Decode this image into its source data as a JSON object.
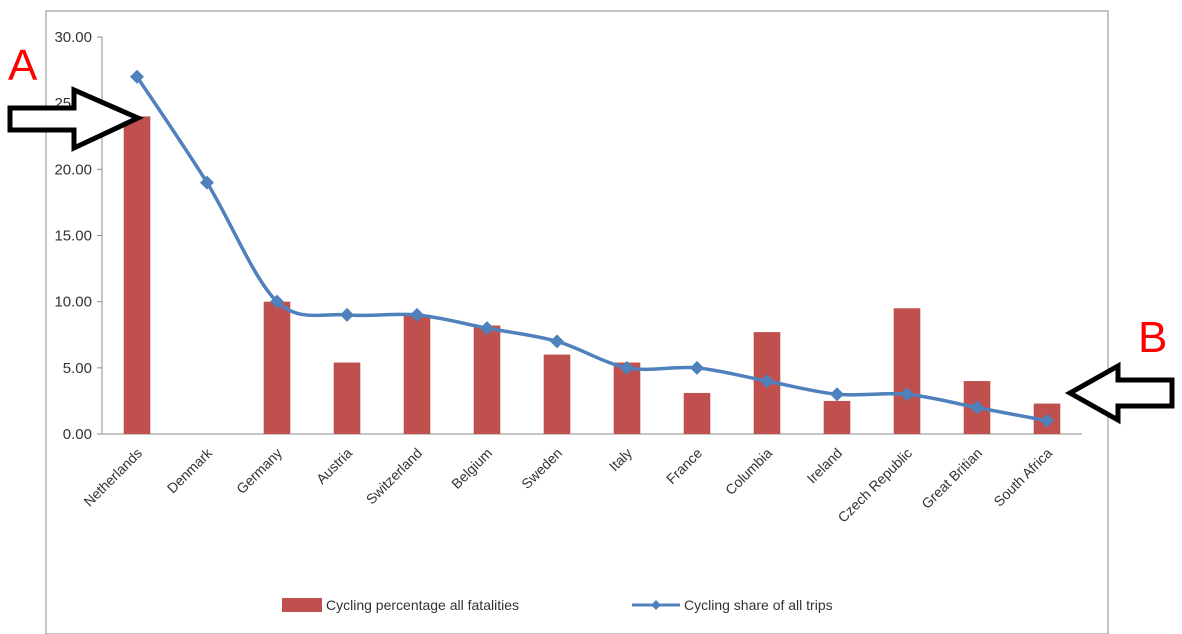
{
  "chart_data": {
    "type": "bar",
    "title": "",
    "xlabel": "",
    "ylabel": "",
    "ylim": [
      0,
      30
    ],
    "yticks": [
      "0.00",
      "5.00",
      "10.00",
      "15.00",
      "20.00",
      "25.00",
      "30.00"
    ],
    "grid": false,
    "legend_position": "bottom",
    "categories": [
      "Netherlands",
      "Denmark",
      "Germany",
      "Austria",
      "Switzerland",
      "Belgium",
      "Sweden",
      "Italy",
      "France",
      "Columbia",
      "Ireland",
      "Czech Republic",
      "Great Britian",
      "South Africa"
    ],
    "series": [
      {
        "name": "Cycling percentage all fatalities",
        "type": "bar",
        "color": "#c0504d",
        "values": [
          24.0,
          0,
          10.0,
          5.4,
          9.0,
          8.2,
          6.0,
          5.4,
          3.1,
          7.7,
          2.5,
          9.5,
          4.0,
          2.3
        ]
      },
      {
        "name": "Cycling share of all trips",
        "type": "line",
        "color": "#4f81bd",
        "values": [
          27.0,
          19.0,
          10.0,
          9.0,
          9.0,
          8.0,
          7.0,
          5.0,
          5.0,
          4.0,
          3.0,
          3.0,
          2.0,
          1.0
        ]
      }
    ],
    "annotations": [
      {
        "label": "A",
        "color": "#ff0000"
      },
      {
        "label": "B",
        "color": "#ff0000"
      }
    ]
  }
}
